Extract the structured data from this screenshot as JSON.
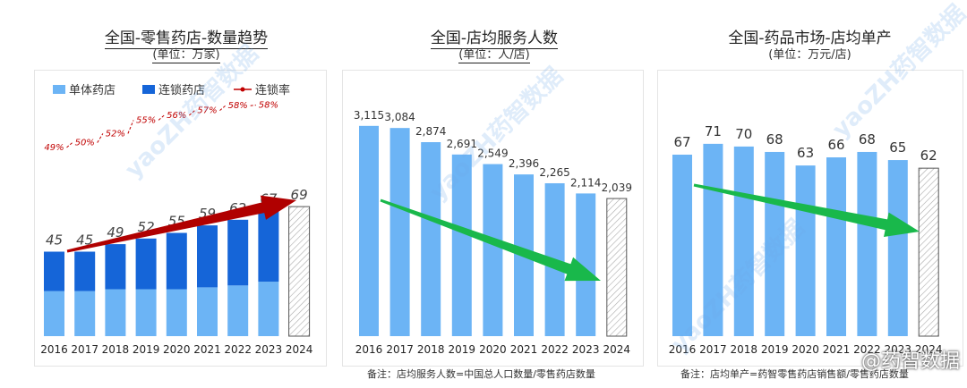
{
  "watermark": {
    "text": "yaoZH药智数据",
    "corner": "@药智数据"
  },
  "chart_data": [
    {
      "type": "bar",
      "title": "全国-零售药店-数量趋势",
      "subtitle": "(单位：万家)",
      "categories": [
        "2016",
        "2017",
        "2018",
        "2019",
        "2020",
        "2021",
        "2022",
        "2023",
        "2024"
      ],
      "totals": [
        45,
        45,
        49,
        52,
        55,
        59,
        62,
        67,
        69
      ],
      "series": [
        {
          "name": "单体药店",
          "values": [
            24,
            24,
            25,
            25,
            25,
            26,
            27,
            29,
            null
          ],
          "color": "#6cb4f5"
        },
        {
          "name": "连锁药店",
          "values": [
            21,
            21,
            24,
            27,
            30,
            33,
            35,
            38,
            null
          ],
          "color": "#1565d8"
        },
        {
          "name": "连锁率",
          "values": [
            49,
            50,
            52,
            55,
            56,
            57,
            58,
            58,
            null
          ],
          "labels": [
            "49%",
            "50%",
            "52%",
            "55%",
            "56%",
            "57%",
            "58%",
            "58%",
            ""
          ],
          "color": "#c00000"
        }
      ],
      "forecast_index": 8,
      "legend": "top"
    },
    {
      "type": "bar",
      "title": "全国-店均服务人数",
      "subtitle": "(单位：人/店)",
      "categories": [
        "2016",
        "2017",
        "2018",
        "2019",
        "2020",
        "2021",
        "2022",
        "2023",
        "2024"
      ],
      "values": [
        3115,
        3084,
        2874,
        2691,
        2549,
        2396,
        2265,
        2114,
        2039
      ],
      "labels": [
        "3,115",
        "3,084",
        "2,874",
        "2,691",
        "2,549",
        "2,396",
        "2,265",
        "2,114",
        "2,039"
      ],
      "forecast_index": 8,
      "note": "备注：店均服务人数=中国总人口数量/零售药店数量"
    },
    {
      "type": "bar",
      "title": "全国-药品市场-店均单产",
      "subtitle": "(单位：万元/店)",
      "categories": [
        "2016",
        "2017",
        "2018",
        "2019",
        "2020",
        "2021",
        "2022",
        "2023",
        "2024"
      ],
      "values": [
        67,
        71,
        70,
        68,
        63,
        66,
        68,
        65,
        62
      ],
      "forecast_index": 8,
      "note": "备注：店均单产=药智零售药店销售额/零售药店数量"
    }
  ]
}
